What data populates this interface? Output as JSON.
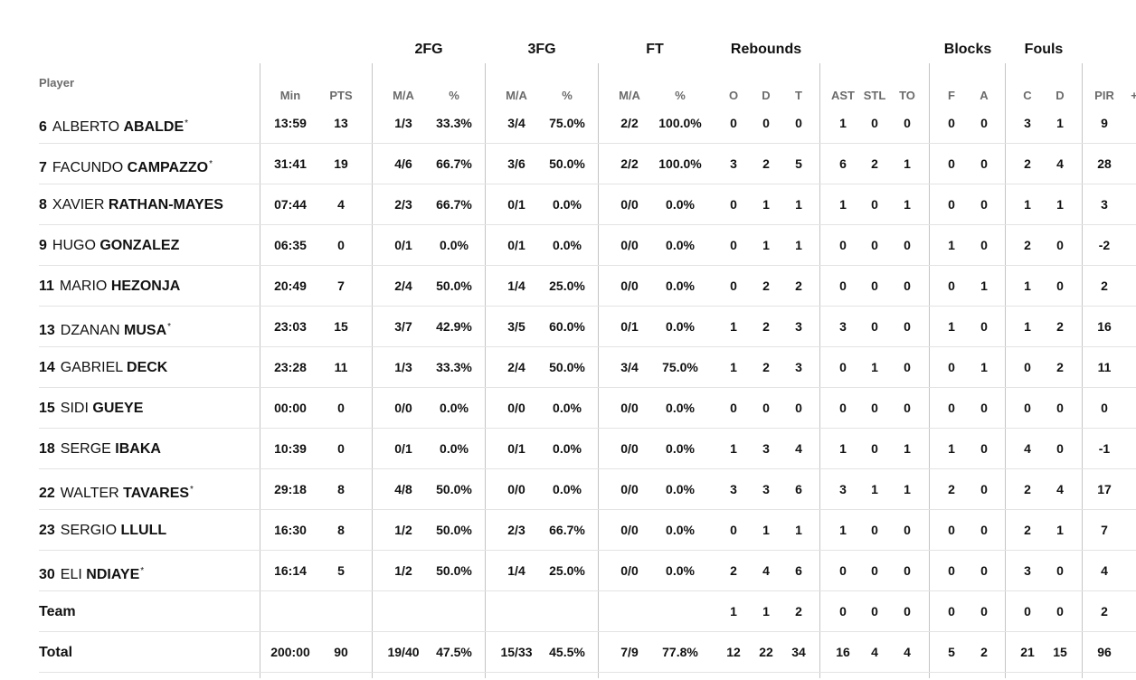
{
  "group_headers": [
    {
      "key": "2fg",
      "label": "2FG"
    },
    {
      "key": "3fg",
      "label": "3FG"
    },
    {
      "key": "ft",
      "label": "FT"
    },
    {
      "key": "reb",
      "label": "Rebounds"
    },
    {
      "key": "blk",
      "label": "Blocks"
    },
    {
      "key": "fls",
      "label": "Fouls"
    }
  ],
  "player_header": "Player",
  "columns": [
    "Min",
    "PTS",
    "M/A",
    "%",
    "M/A",
    "%",
    "M/A",
    "%",
    "O",
    "D",
    "T",
    "AST",
    "STL",
    "TO",
    "F",
    "A",
    "C",
    "D",
    "PIR",
    "+/-"
  ],
  "players": [
    {
      "number": "6",
      "first": "ALBERTO",
      "last": "ABALDE",
      "starter": "*",
      "stats": [
        "13:59",
        "13",
        "1/3",
        "33.3%",
        "3/4",
        "75.0%",
        "2/2",
        "100.0%",
        "0",
        "0",
        "0",
        "1",
        "0",
        "0",
        "0",
        "0",
        "3",
        "1",
        "9",
        ""
      ]
    },
    {
      "number": "7",
      "first": "FACUNDO",
      "last": "CAMPAZZO",
      "starter": "*",
      "stats": [
        "31:41",
        "19",
        "4/6",
        "66.7%",
        "3/6",
        "50.0%",
        "2/2",
        "100.0%",
        "3",
        "2",
        "5",
        "6",
        "2",
        "1",
        "0",
        "0",
        "2",
        "4",
        "28",
        ""
      ]
    },
    {
      "number": "8",
      "first": "XAVIER",
      "last": "RATHAN-MAYES",
      "starter": "",
      "stats": [
        "07:44",
        "4",
        "2/3",
        "66.7%",
        "0/1",
        "0.0%",
        "0/0",
        "0.0%",
        "0",
        "1",
        "1",
        "1",
        "0",
        "1",
        "0",
        "0",
        "1",
        "1",
        "3",
        ""
      ]
    },
    {
      "number": "9",
      "first": "HUGO",
      "last": "GONZALEZ",
      "starter": "",
      "stats": [
        "06:35",
        "0",
        "0/1",
        "0.0%",
        "0/1",
        "0.0%",
        "0/0",
        "0.0%",
        "0",
        "1",
        "1",
        "0",
        "0",
        "0",
        "1",
        "0",
        "2",
        "0",
        "-2",
        ""
      ]
    },
    {
      "number": "11",
      "first": "MARIO",
      "last": "HEZONJA",
      "starter": "",
      "stats": [
        "20:49",
        "7",
        "2/4",
        "50.0%",
        "1/4",
        "25.0%",
        "0/0",
        "0.0%",
        "0",
        "2",
        "2",
        "0",
        "0",
        "0",
        "0",
        "1",
        "1",
        "0",
        "2",
        ""
      ]
    },
    {
      "number": "13",
      "first": "DZANAN",
      "last": "MUSA",
      "starter": "*",
      "stats": [
        "23:03",
        "15",
        "3/7",
        "42.9%",
        "3/5",
        "60.0%",
        "0/1",
        "0.0%",
        "1",
        "2",
        "3",
        "3",
        "0",
        "0",
        "1",
        "0",
        "1",
        "2",
        "16",
        ""
      ]
    },
    {
      "number": "14",
      "first": "GABRIEL",
      "last": "DECK",
      "starter": "",
      "stats": [
        "23:28",
        "11",
        "1/3",
        "33.3%",
        "2/4",
        "50.0%",
        "3/4",
        "75.0%",
        "1",
        "2",
        "3",
        "0",
        "1",
        "0",
        "0",
        "1",
        "0",
        "2",
        "11",
        ""
      ]
    },
    {
      "number": "15",
      "first": "SIDI",
      "last": "GUEYE",
      "starter": "",
      "stats": [
        "00:00",
        "0",
        "0/0",
        "0.0%",
        "0/0",
        "0.0%",
        "0/0",
        "0.0%",
        "0",
        "0",
        "0",
        "0",
        "0",
        "0",
        "0",
        "0",
        "0",
        "0",
        "0",
        ""
      ]
    },
    {
      "number": "18",
      "first": "SERGE",
      "last": "IBAKA",
      "starter": "",
      "stats": [
        "10:39",
        "0",
        "0/1",
        "0.0%",
        "0/1",
        "0.0%",
        "0/0",
        "0.0%",
        "1",
        "3",
        "4",
        "1",
        "0",
        "1",
        "1",
        "0",
        "4",
        "0",
        "-1",
        ""
      ]
    },
    {
      "number": "22",
      "first": "WALTER",
      "last": "TAVARES",
      "starter": "*",
      "stats": [
        "29:18",
        "8",
        "4/8",
        "50.0%",
        "0/0",
        "0.0%",
        "0/0",
        "0.0%",
        "3",
        "3",
        "6",
        "3",
        "1",
        "1",
        "2",
        "0",
        "2",
        "4",
        "17",
        ""
      ]
    },
    {
      "number": "23",
      "first": "SERGIO",
      "last": "LLULL",
      "starter": "",
      "stats": [
        "16:30",
        "8",
        "1/2",
        "50.0%",
        "2/3",
        "66.7%",
        "0/0",
        "0.0%",
        "0",
        "1",
        "1",
        "1",
        "0",
        "0",
        "0",
        "0",
        "2",
        "1",
        "7",
        ""
      ]
    },
    {
      "number": "30",
      "first": "ELI",
      "last": "NDIAYE",
      "starter": "*",
      "stats": [
        "16:14",
        "5",
        "1/2",
        "50.0%",
        "1/4",
        "25.0%",
        "0/0",
        "0.0%",
        "2",
        "4",
        "6",
        "0",
        "0",
        "0",
        "0",
        "0",
        "3",
        "0",
        "4",
        ""
      ]
    }
  ],
  "team_row": {
    "label": "Team",
    "stats": [
      "",
      "",
      "",
      "",
      "",
      "",
      "",
      "",
      "1",
      "1",
      "2",
      "0",
      "0",
      "0",
      "0",
      "0",
      "0",
      "0",
      "2",
      ""
    ]
  },
  "total_row": {
    "label": "Total",
    "stats": [
      "200:00",
      "90",
      "19/40",
      "47.5%",
      "15/33",
      "45.5%",
      "7/9",
      "77.8%",
      "12",
      "22",
      "34",
      "16",
      "4",
      "4",
      "5",
      "2",
      "21",
      "15",
      "96",
      ""
    ]
  }
}
